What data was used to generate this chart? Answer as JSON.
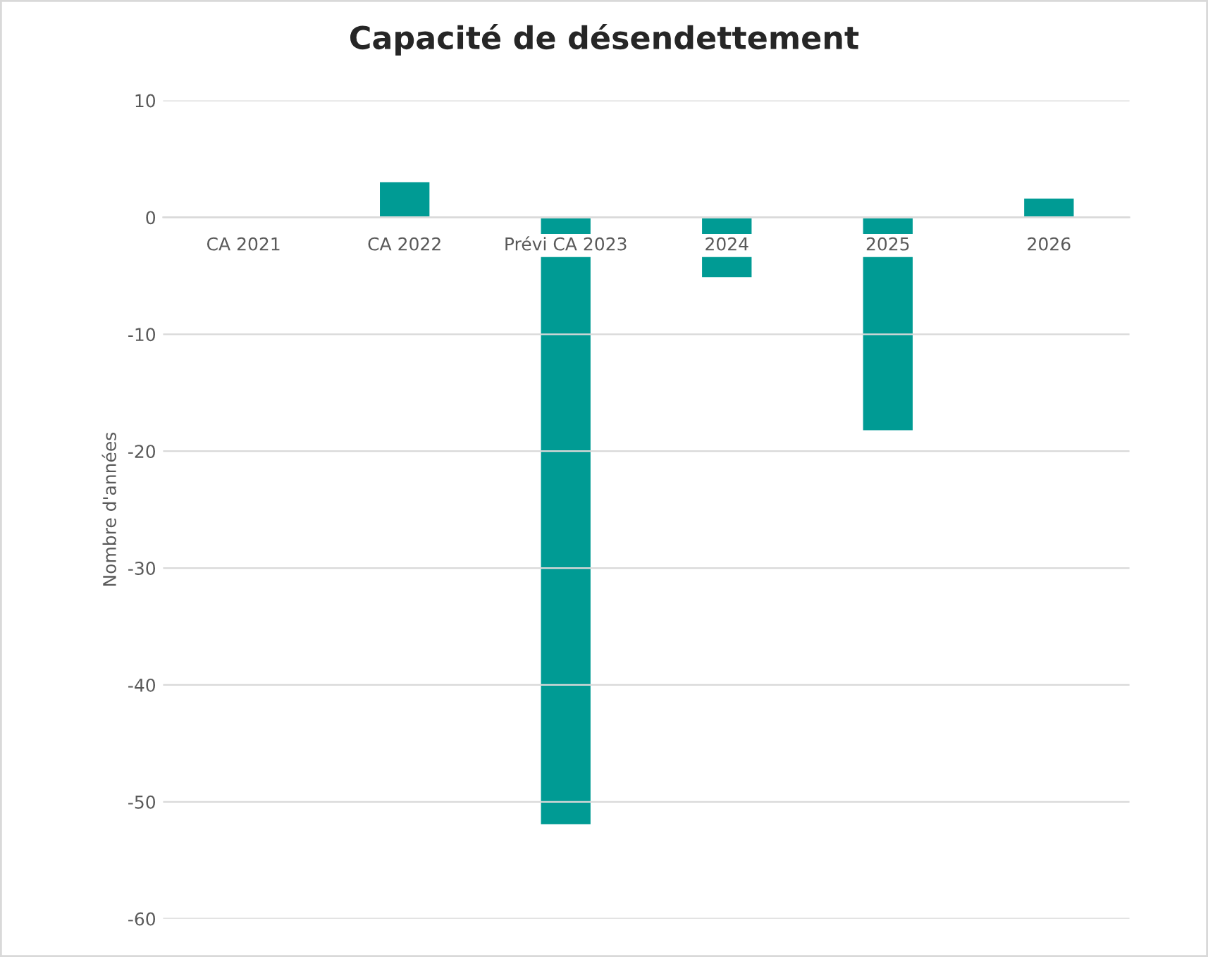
{
  "chart_data": {
    "type": "bar",
    "title": "Capacité de désendettement",
    "ylabel": "Nombre d'années",
    "categories": [
      "CA 2021",
      "CA 2022",
      "Prévi CA 2023",
      "2024",
      "2025",
      "2026"
    ],
    "values": [
      null,
      3.1,
      -52,
      -5.2,
      -18.3,
      1.7
    ],
    "color": "#009b94",
    "ylim": [
      -60,
      10
    ],
    "yticks": [
      -60,
      -50,
      -40,
      -30,
      -20,
      -10,
      0,
      10
    ],
    "grid": "y",
    "legend": false
  }
}
